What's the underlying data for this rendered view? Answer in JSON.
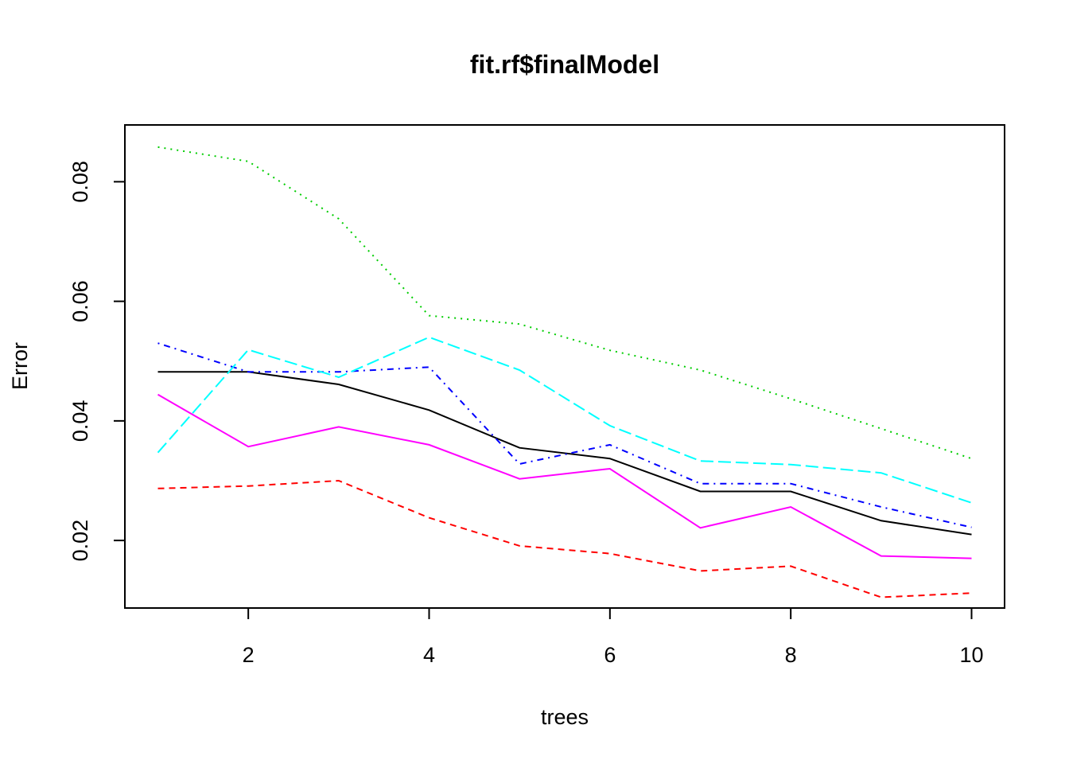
{
  "chart_data": {
    "type": "line",
    "title": "fit.rf$finalModel",
    "xlabel": "trees",
    "ylabel": "Error",
    "xlim": [
      1,
      10
    ],
    "ylim": [
      0.0087,
      0.0895
    ],
    "x": [
      1,
      2,
      3,
      4,
      5,
      6,
      7,
      8,
      9,
      10
    ],
    "x_ticks": [
      2,
      4,
      6,
      8,
      10
    ],
    "x_tick_labels": [
      "2",
      "4",
      "6",
      "8",
      "10"
    ],
    "y_ticks": [
      0.02,
      0.04,
      0.06,
      0.08
    ],
    "y_tick_labels": [
      "0.02",
      "0.04",
      "0.06",
      "0.08"
    ],
    "grid": false,
    "legend": "none",
    "series": [
      {
        "color": "#000000",
        "dash": "solid",
        "values": [
          0.0482,
          0.0482,
          0.0461,
          0.0418,
          0.0355,
          0.0337,
          0.0282,
          0.0282,
          0.0233,
          0.021
        ]
      },
      {
        "color": "#ff0000",
        "dash": "dashed",
        "values": [
          0.0287,
          0.0291,
          0.03,
          0.0238,
          0.0191,
          0.0178,
          0.0149,
          0.0157,
          0.0105,
          0.0112
        ]
      },
      {
        "color": "#00cd00",
        "dash": "dotted",
        "values": [
          0.0858,
          0.0834,
          0.0738,
          0.0576,
          0.0562,
          0.0518,
          0.0485,
          0.0437,
          0.0387,
          0.0337
        ]
      },
      {
        "color": "#0000ff",
        "dash": "dotdash",
        "values": [
          0.053,
          0.0482,
          0.0482,
          0.049,
          0.0328,
          0.036,
          0.0295,
          0.0295,
          0.0256,
          0.0222
        ]
      },
      {
        "color": "#00ffff",
        "dash": "longdash",
        "values": [
          0.0347,
          0.0519,
          0.0473,
          0.054,
          0.0485,
          0.0392,
          0.0333,
          0.0327,
          0.0313,
          0.0263
        ]
      },
      {
        "color": "#ff00ff",
        "dash": "solid",
        "values": [
          0.0444,
          0.0357,
          0.039,
          0.036,
          0.0303,
          0.032,
          0.0221,
          0.0256,
          0.0174,
          0.017
        ]
      }
    ]
  }
}
